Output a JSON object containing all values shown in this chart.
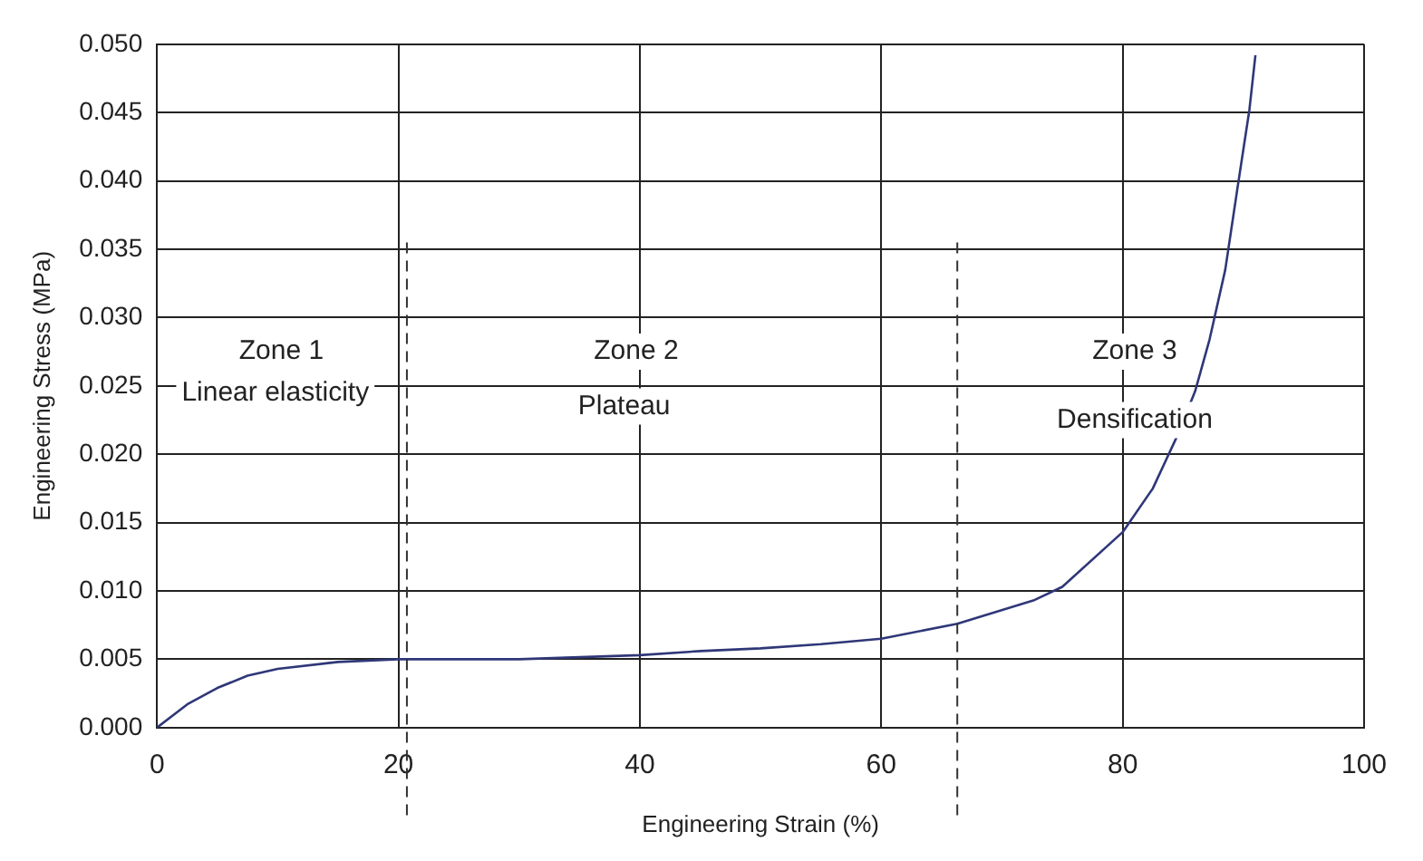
{
  "chart_data": {
    "type": "line",
    "xlabel": "Engineering Strain (%)",
    "ylabel": "Engineering Stress (MPa)",
    "xlim": [
      0,
      100
    ],
    "xticks": [
      0,
      20,
      40,
      60,
      80,
      100
    ],
    "ylim": [
      0,
      0.05
    ],
    "yticks": [
      {
        "value": 0,
        "label": "0.000"
      },
      {
        "value": 0.005,
        "label": "0.005"
      },
      {
        "value": 0.01,
        "label": "0.010"
      },
      {
        "value": 0.015,
        "label": "0.015"
      },
      {
        "value": 0.02,
        "label": "0.020"
      },
      {
        "value": 0.025,
        "label": "0.025"
      },
      {
        "value": 0.03,
        "label": "0.030"
      },
      {
        "value": 0.035,
        "label": "0.035"
      },
      {
        "value": 0.04,
        "label": "0.040"
      },
      {
        "value": 0.045,
        "label": "0.045"
      },
      {
        "value": 0.05,
        "label": "0.050"
      }
    ],
    "grid": true,
    "legend": false,
    "marker": "none",
    "line_style": "solid",
    "series": [
      {
        "color": "#2f3778",
        "x": [
          0,
          2.5,
          5,
          7.5,
          10,
          15,
          20,
          30,
          40,
          45,
          50,
          55,
          60,
          66.3,
          72.6,
          75,
          80,
          82.5,
          84.5,
          86,
          87.2,
          88.5,
          89.5,
          90.5,
          91
        ],
        "values": [
          0,
          0.0017,
          0.0029,
          0.0038,
          0.0043,
          0.0048,
          0.005,
          0.005,
          0.0053,
          0.0056,
          0.0058,
          0.0061,
          0.0065,
          0.0076,
          0.0093,
          0.0103,
          0.0143,
          0.0175,
          0.0213,
          0.0246,
          0.0284,
          0.0335,
          0.0394,
          0.0452,
          0.0492
        ]
      }
    ],
    "ref_lines": [
      {
        "axis": "x",
        "value": 20.7,
        "line_style": "dashed",
        "color": "#333333"
      },
      {
        "axis": "x",
        "value": 66.3,
        "line_style": "dashed",
        "color": "#333333"
      }
    ],
    "annotations": [
      "Zone 1",
      "Linear elasticity",
      "Zone 2",
      "Plateau",
      "Zone 3",
      "Densification"
    ]
  }
}
